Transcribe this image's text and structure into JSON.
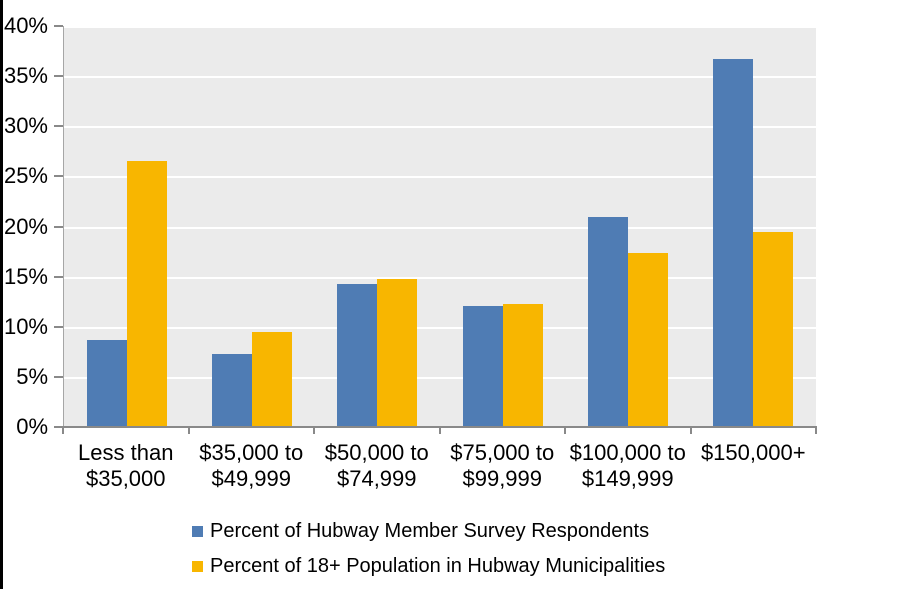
{
  "chart_data": {
    "type": "bar",
    "title": "",
    "categories": [
      "Less than $35,000",
      "$35,000 to $49,999",
      "$50,000 to $74,999",
      "$75,000 to $99,999",
      "$100,000 to $149,999",
      "$150,000+"
    ],
    "category_label_lines": [
      [
        "Less than",
        "$35,000"
      ],
      [
        "$35,000 to",
        "$49,999"
      ],
      [
        "$50,000 to",
        "$74,999"
      ],
      [
        "$75,000 to",
        "$99,999"
      ],
      [
        "$100,000 to",
        "$149,999"
      ],
      [
        "$150,000+",
        ""
      ]
    ],
    "series": [
      {
        "name": "Percent of Hubway Member Survey Respondents",
        "color": "#4F7CB4",
        "values": [
          8.7,
          7.3,
          14.3,
          12.1,
          21.0,
          36.7
        ]
      },
      {
        "name": "Percent of 18+ Population in Hubway Municipalities",
        "color": "#F8B600",
        "values": [
          26.5,
          9.5,
          14.8,
          12.3,
          17.4,
          19.5
        ]
      }
    ],
    "xlabel": "",
    "ylabel": "",
    "ylim": [
      0,
      40
    ],
    "ytick_step": 5,
    "ytick_labels": [
      "0%",
      "5%",
      "10%",
      "15%",
      "20%",
      "25%",
      "30%",
      "35%",
      "40%"
    ],
    "grid": true,
    "gridline_color": "#FFFFFF",
    "plot_background": "#EBEBEB",
    "axis_color": "#898989",
    "legend_position": "bottom-left"
  }
}
